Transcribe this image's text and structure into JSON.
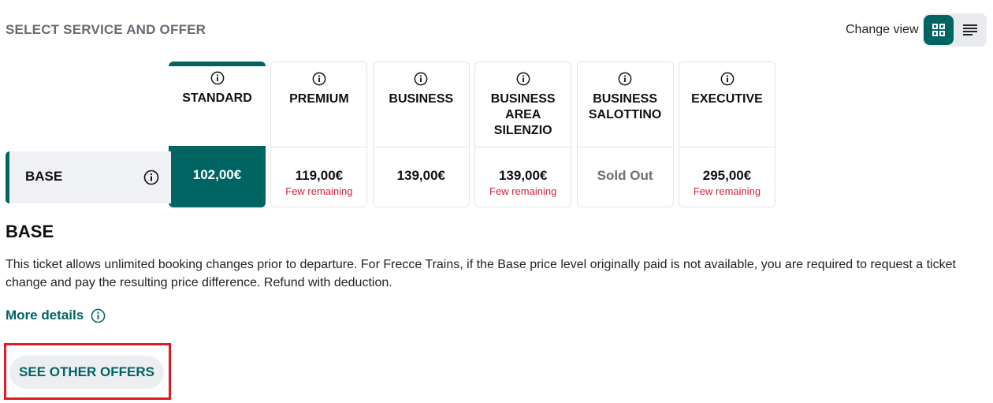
{
  "header": {
    "title": "SELECT SERVICE AND OFFER",
    "change_view_label": "Change view",
    "views": [
      {
        "icon": "grid-icon",
        "active": true
      },
      {
        "icon": "list-icon",
        "active": false
      }
    ]
  },
  "services": [
    {
      "name": "STANDARD",
      "price": "102,00€",
      "note": "",
      "selected": true
    },
    {
      "name": "PREMIUM",
      "price": "119,00€",
      "note": "Few remaining"
    },
    {
      "name": "BUSINESS",
      "price": "139,00€",
      "note": ""
    },
    {
      "name": "BUSINESS AREA SILENZIO",
      "price": "139,00€",
      "note": "Few remaining"
    },
    {
      "name": "BUSINESS SALOTTINO",
      "price": "Sold Out",
      "note": ""
    },
    {
      "name": "EXECUTIVE",
      "price": "295,00€",
      "note": "Few remaining"
    }
  ],
  "offer_row": {
    "label": "BASE"
  },
  "offer_detail": {
    "title": "BASE",
    "description": "This ticket allows unlimited booking changes prior to departure. For Frecce Trains, if the Base price level originally paid is not available, you are required to request a ticket change and pay the resulting price difference. Refund with deduction.",
    "more_details": "More details",
    "see_other_offers": "SEE OTHER OFFERS"
  },
  "colors": {
    "accent": "#006463",
    "warning": "#d8213f",
    "highlight": "#e01b22"
  }
}
